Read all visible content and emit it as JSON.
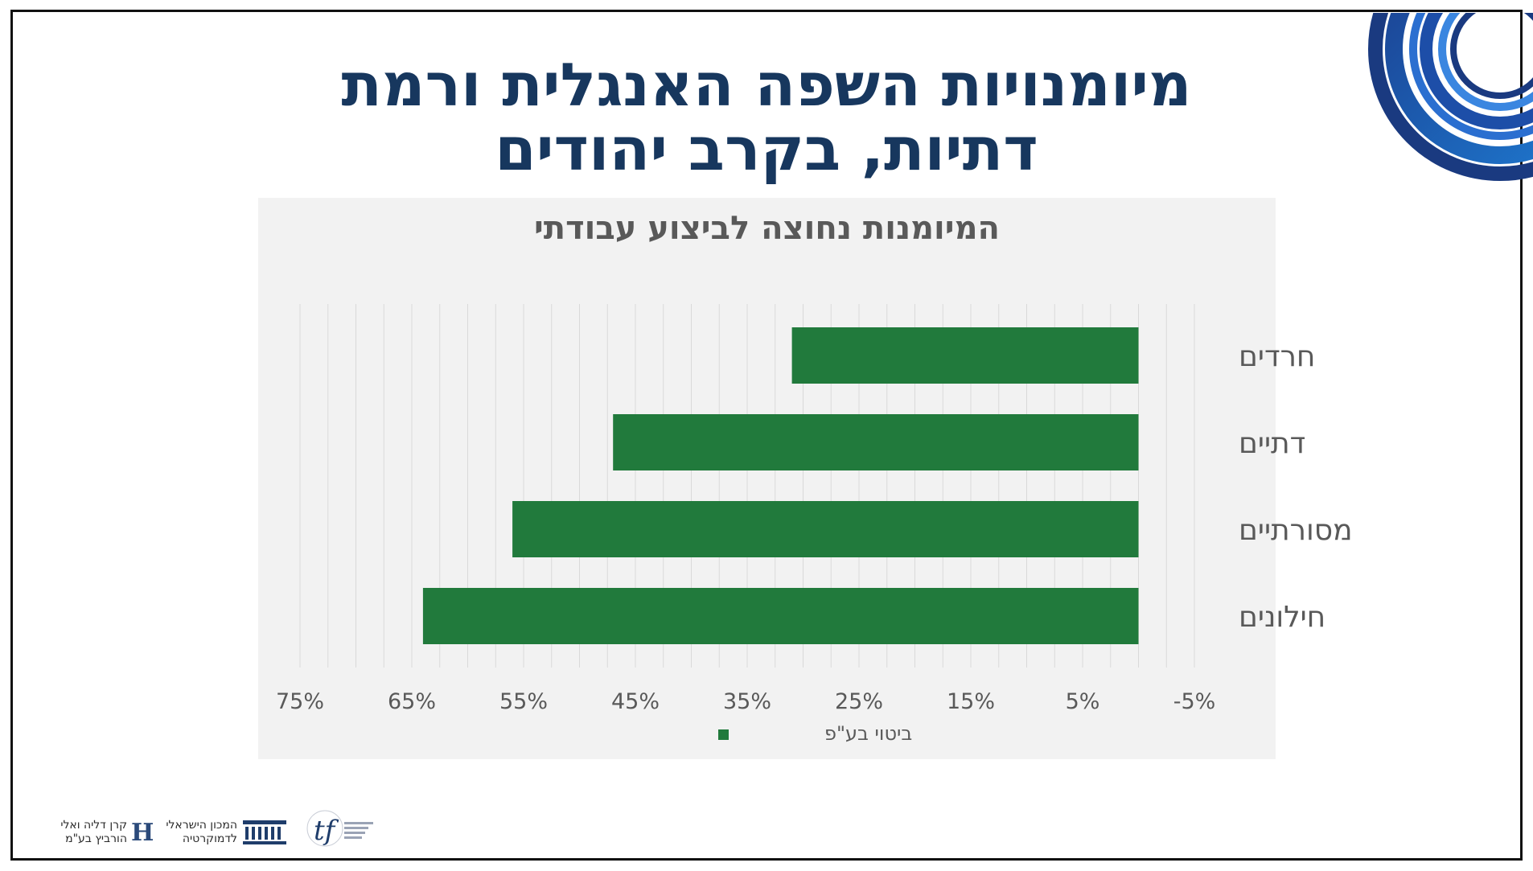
{
  "slide": {
    "title_line1": "מיומנויות השפה האנגלית ורמת",
    "title_line2": "דתיות, בקרב יהודים"
  },
  "logos": {
    "hurwitz_line1": "קרן דליה ואלי",
    "hurwitz_line2": "הורביץ בע\"מ",
    "idi_line1": "המכון הישראלי",
    "idi_line2": "לדמוקרטיה"
  },
  "colors": {
    "title": "#17375e",
    "bar": "#217a3c",
    "panel": "#f2f2f2",
    "axis_text": "#595959"
  },
  "chart_data": {
    "type": "bar",
    "orientation": "horizontal",
    "title": "המיומנות נחוצה לביצוע עבודתי",
    "categories": [
      "חרדים",
      "דתיים",
      "מסורתיים",
      "חילונים"
    ],
    "series": [
      {
        "name": "ביטוי בע\"פ",
        "values": [
          31,
          47,
          56,
          64
        ]
      }
    ],
    "xlim": [
      -5,
      75
    ],
    "x_reversed": true,
    "x_ticks": [
      -5,
      5,
      15,
      25,
      35,
      45,
      55,
      65,
      75
    ],
    "x_tick_labels": [
      "-5%",
      "5%",
      "15%",
      "25%",
      "35%",
      "45%",
      "55%",
      "65%",
      "75%"
    ],
    "grid": "vertical",
    "legend_position": "bottom"
  }
}
